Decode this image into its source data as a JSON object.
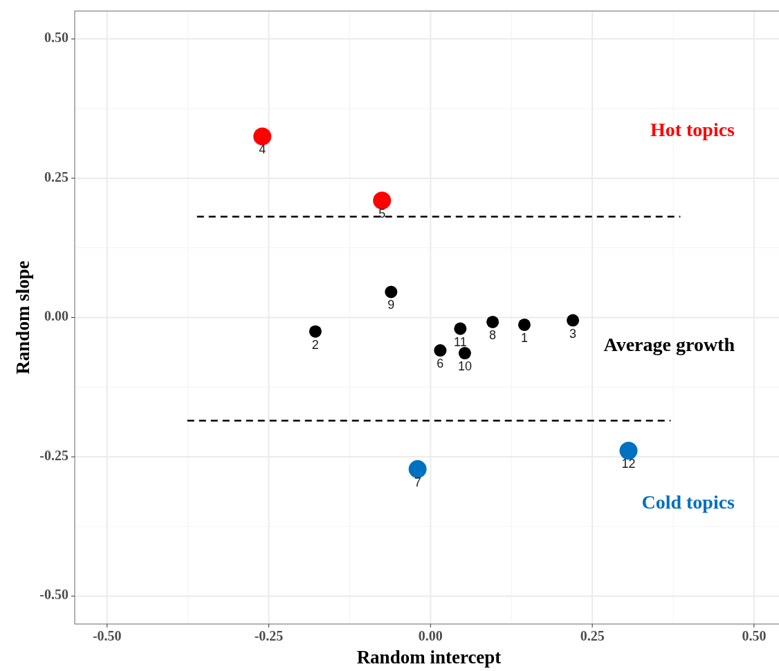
{
  "chart_data": {
    "type": "bubble",
    "xlabel": "Random intercept",
    "ylabel": "Random slope",
    "xlim": [
      -0.55,
      0.545
    ],
    "ylim": [
      -0.55,
      0.55
    ],
    "xticks": [
      {
        "value": -0.5,
        "label": "-0.50"
      },
      {
        "value": -0.25,
        "label": "-0.25"
      },
      {
        "value": 0,
        "label": "0.00"
      },
      {
        "value": 0.25,
        "label": "0.25"
      },
      {
        "value": 0.5,
        "label": "0.50"
      }
    ],
    "yticks": [
      {
        "value": -0.5,
        "label": "-0.50"
      },
      {
        "value": -0.25,
        "label": "-0.25"
      },
      {
        "value": 0,
        "label": "0.00"
      },
      {
        "value": 0.25,
        "label": "0.25"
      },
      {
        "value": 0.5,
        "label": "0.50"
      }
    ],
    "grid": true,
    "series": [
      {
        "name": "Hot topics",
        "color": "#ff0000",
        "x": [
          -0.26,
          -0.075
        ],
        "values": [
          0.325,
          0.21
        ],
        "sizes": [
          1,
          1
        ]
      },
      {
        "name": "Average growth",
        "color": "#000000",
        "x": [
          0.145,
          -0.178,
          0.22,
          0.015,
          0.096,
          -0.061,
          0.053,
          0.046
        ],
        "values": [
          -0.013,
          -0.025,
          -0.005,
          -0.059,
          -0.008,
          0.046,
          -0.064,
          -0.02
        ],
        "sizes": [
          0.48,
          0.48,
          0.48,
          0.48,
          0.48,
          0.48,
          0.48,
          0.48
        ]
      },
      {
        "name": "Cold topics",
        "color": "#0070c0",
        "x": [
          -0.02,
          0.306
        ],
        "values": [
          -0.272,
          -0.239
        ],
        "sizes": [
          1,
          1
        ]
      },
      {
        "type": "line",
        "color": "#000000",
        "line_style": "dashed",
        "x": [
          -0.361,
          0.386
        ],
        "values": [
          0.181,
          0.181
        ]
      },
      {
        "type": "line",
        "color": "#000000",
        "line_style": "dashed",
        "x": [
          -0.376,
          0.371
        ],
        "values": [
          -0.185,
          -0.185
        ]
      }
    ],
    "annotations": [
      {
        "text": "1",
        "x": 0.145,
        "y": -0.013
      },
      {
        "text": "2",
        "x": -0.178,
        "y": -0.025
      },
      {
        "text": "3",
        "x": 0.22,
        "y": -0.005
      },
      {
        "text": "4",
        "x": -0.26,
        "y": 0.325
      },
      {
        "text": "5",
        "x": -0.075,
        "y": 0.21
      },
      {
        "text": "6",
        "x": 0.015,
        "y": -0.059
      },
      {
        "text": "7",
        "x": -0.02,
        "y": -0.272
      },
      {
        "text": "8",
        "x": 0.096,
        "y": -0.008
      },
      {
        "text": "9",
        "x": -0.061,
        "y": 0.046
      },
      {
        "text": "10",
        "x": 0.053,
        "y": -0.064
      },
      {
        "text": "11",
        "x": 0.046,
        "y": -0.02
      },
      {
        "text": "12",
        "x": 0.306,
        "y": -0.239
      }
    ]
  }
}
